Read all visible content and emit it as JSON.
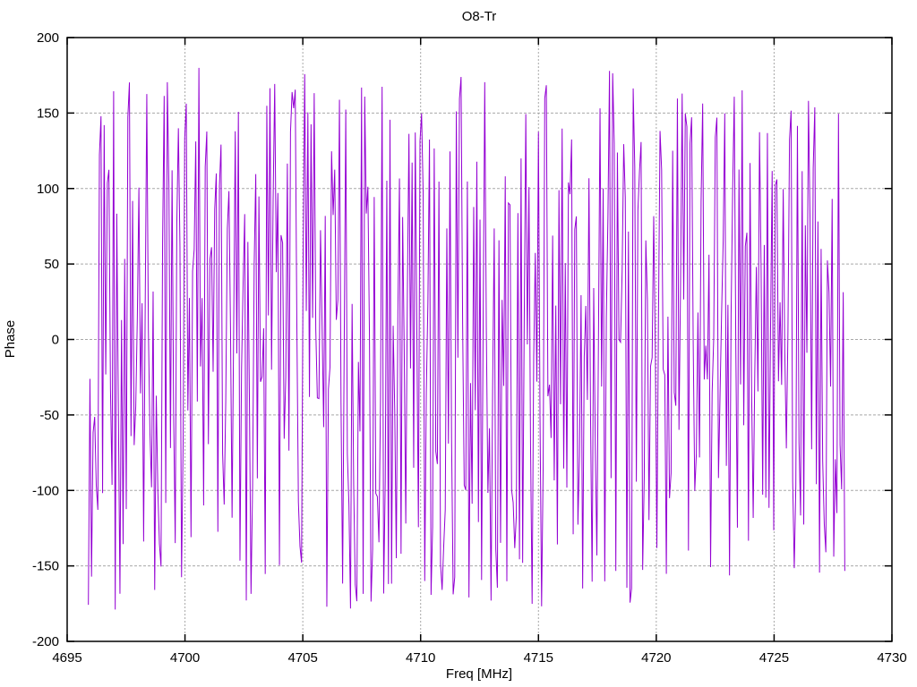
{
  "window": {
    "background": "#ffffff",
    "text_color": "#000000"
  },
  "chart_data": {
    "type": "line",
    "title": "O8-Tr",
    "xlabel": "Freq [MHz]",
    "ylabel": "Phase",
    "xlim": [
      4695,
      4730
    ],
    "ylim": [
      -200,
      200
    ],
    "xticks": [
      4695,
      4700,
      4705,
      4710,
      4715,
      4720,
      4725,
      4730
    ],
    "yticks": [
      -200,
      -150,
      -100,
      -50,
      0,
      50,
      100,
      150,
      200
    ],
    "grid": {
      "show": true,
      "color": "#a8a8a8",
      "horizontal_dash": "3,2",
      "vertical_dash": "2,2"
    },
    "legend": "none",
    "frame_color": "#000000",
    "line_color": "#9400d3",
    "series": [
      {
        "name": "O8-Tr",
        "style": "wrapped-phase-noise",
        "x_start": 4695.9,
        "x_end": 4728.0,
        "n_points": 480,
        "y_wrap_min": -180,
        "y_wrap_max": 180,
        "step_amplitude_deg": 240,
        "seed": 7
      }
    ]
  }
}
